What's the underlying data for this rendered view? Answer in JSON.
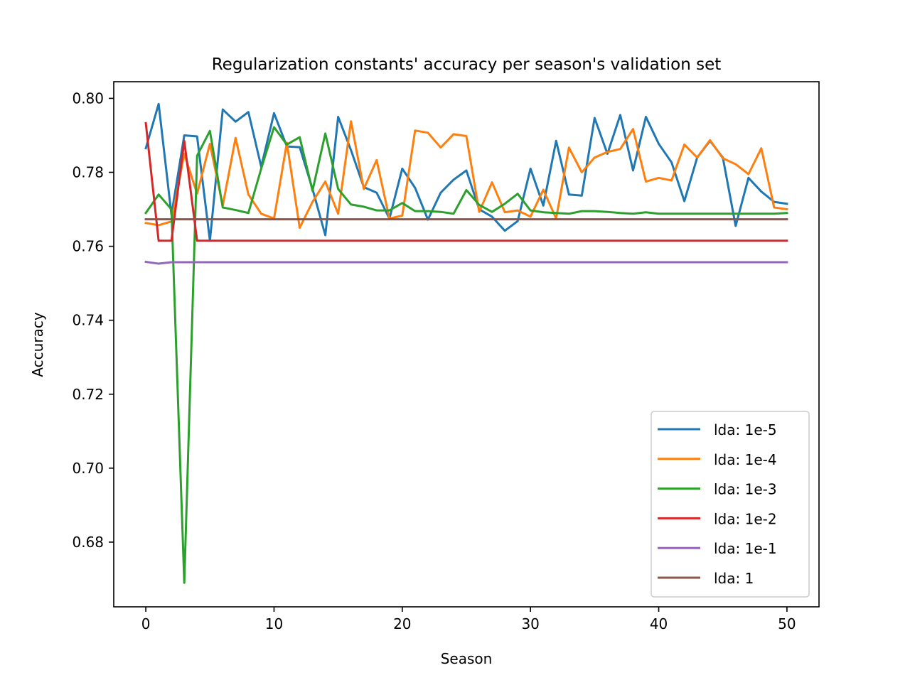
{
  "chart_data": {
    "type": "line",
    "title": "Regularization constants' accuracy per season's validation set",
    "xlabel": "Season",
    "ylabel": "Accuracy",
    "xlim": [
      -2.5,
      52.5
    ],
    "ylim": [
      0.6625,
      0.8045
    ],
    "xticks": [
      0,
      10,
      20,
      30,
      40,
      50
    ],
    "yticks": [
      0.68,
      0.7,
      0.72,
      0.74,
      0.76,
      0.78,
      0.8
    ],
    "ytick_labels": [
      "0.68",
      "0.70",
      "0.72",
      "0.74",
      "0.76",
      "0.78",
      "0.80"
    ],
    "grid": false,
    "legend_position": "lower-right",
    "x": [
      0,
      1,
      2,
      3,
      4,
      5,
      6,
      7,
      8,
      9,
      10,
      11,
      12,
      13,
      14,
      15,
      16,
      17,
      18,
      19,
      20,
      21,
      22,
      23,
      24,
      25,
      26,
      27,
      28,
      29,
      30,
      31,
      32,
      33,
      34,
      35,
      36,
      37,
      38,
      39,
      40,
      41,
      42,
      43,
      44,
      45,
      46,
      47,
      48,
      49,
      50
    ],
    "series": [
      {
        "name": "lda: 1e-5",
        "color": "#1f77b4",
        "values": [
          0.7865,
          0.7985,
          0.7685,
          0.79,
          0.7897,
          0.7615,
          0.797,
          0.7937,
          0.7963,
          0.7815,
          0.796,
          0.787,
          0.7868,
          0.7755,
          0.763,
          0.795,
          0.786,
          0.776,
          0.7745,
          0.7675,
          0.781,
          0.7758,
          0.7672,
          0.7745,
          0.778,
          0.7805,
          0.77,
          0.768,
          0.7642,
          0.7668,
          0.781,
          0.771,
          0.7885,
          0.774,
          0.7737,
          0.7947,
          0.785,
          0.7955,
          0.7805,
          0.795,
          0.7877,
          0.7827,
          0.7722,
          0.784,
          0.7885,
          0.784,
          0.7655,
          0.7785,
          0.7748,
          0.772,
          0.7715
        ]
      },
      {
        "name": "lda: 1e-4",
        "color": "#ff7f0e",
        "values": [
          0.7663,
          0.7657,
          0.7667,
          0.785,
          0.7742,
          0.7877,
          0.771,
          0.7893,
          0.774,
          0.7688,
          0.7675,
          0.788,
          0.765,
          0.772,
          0.7775,
          0.7688,
          0.7938,
          0.7755,
          0.7833,
          0.7675,
          0.7683,
          0.7913,
          0.7907,
          0.7867,
          0.7903,
          0.7898,
          0.7693,
          0.7773,
          0.7692,
          0.7697,
          0.768,
          0.7753,
          0.7675,
          0.7867,
          0.78,
          0.784,
          0.7855,
          0.7863,
          0.7917,
          0.7775,
          0.7785,
          0.7778,
          0.7875,
          0.784,
          0.7887,
          0.7838,
          0.7822,
          0.7795,
          0.7865,
          0.7705,
          0.77
        ]
      },
      {
        "name": "lda: 1e-3",
        "color": "#2ca02c",
        "values": [
          0.769,
          0.774,
          0.77,
          0.669,
          0.7845,
          0.7912,
          0.7705,
          0.7698,
          0.769,
          0.781,
          0.7922,
          0.7875,
          0.7895,
          0.775,
          0.7905,
          0.7755,
          0.7713,
          0.7707,
          0.7697,
          0.7697,
          0.7717,
          0.7695,
          0.7695,
          0.7693,
          0.7688,
          0.7752,
          0.7712,
          0.7693,
          0.7715,
          0.7742,
          0.7697,
          0.7692,
          0.769,
          0.7688,
          0.7695,
          0.7695,
          0.7693,
          0.769,
          0.7688,
          0.7692,
          0.7688,
          0.7688,
          0.7688,
          0.7688,
          0.7688,
          0.7688,
          0.7688,
          0.7688,
          0.7688,
          0.7688,
          0.769
        ]
      },
      {
        "name": "lda: 1e-2",
        "color": "#d62728",
        "values": [
          0.7933,
          0.7615,
          0.7615,
          0.7885,
          0.7615,
          0.7615,
          0.7615,
          0.7615,
          0.7615,
          0.7615,
          0.7615,
          0.7615,
          0.7615,
          0.7615,
          0.7615,
          0.7615,
          0.7615,
          0.7615,
          0.7615,
          0.7615,
          0.7615,
          0.7615,
          0.7615,
          0.7615,
          0.7615,
          0.7615,
          0.7615,
          0.7615,
          0.7615,
          0.7615,
          0.7615,
          0.7615,
          0.7615,
          0.7615,
          0.7615,
          0.7615,
          0.7615,
          0.7615,
          0.7615,
          0.7615,
          0.7615,
          0.7615,
          0.7615,
          0.7615,
          0.7615,
          0.7615,
          0.7615,
          0.7615,
          0.7615,
          0.7615,
          0.7615
        ]
      },
      {
        "name": "lda: 1e-1",
        "color": "#9467bd",
        "values": [
          0.7558,
          0.7553,
          0.7557,
          0.7557,
          0.7557,
          0.7557,
          0.7557,
          0.7557,
          0.7557,
          0.7557,
          0.7557,
          0.7557,
          0.7557,
          0.7557,
          0.7557,
          0.7557,
          0.7557,
          0.7557,
          0.7557,
          0.7557,
          0.7557,
          0.7557,
          0.7557,
          0.7557,
          0.7557,
          0.7557,
          0.7557,
          0.7557,
          0.7557,
          0.7557,
          0.7557,
          0.7557,
          0.7557,
          0.7557,
          0.7557,
          0.7557,
          0.7557,
          0.7557,
          0.7557,
          0.7557,
          0.7557,
          0.7557,
          0.7557,
          0.7557,
          0.7557,
          0.7557,
          0.7557,
          0.7557,
          0.7557,
          0.7557,
          0.7557
        ]
      },
      {
        "name": "lda: 1",
        "color": "#8c564b",
        "values": [
          0.7673,
          0.7673,
          0.7673,
          0.7673,
          0.7673,
          0.7673,
          0.7673,
          0.7673,
          0.7673,
          0.7673,
          0.7673,
          0.7673,
          0.7673,
          0.7673,
          0.7673,
          0.7673,
          0.7673,
          0.7673,
          0.7673,
          0.7673,
          0.7673,
          0.7673,
          0.7673,
          0.7673,
          0.7673,
          0.7673,
          0.7673,
          0.7673,
          0.7673,
          0.7673,
          0.7673,
          0.7673,
          0.7673,
          0.7673,
          0.7673,
          0.7673,
          0.7673,
          0.7673,
          0.7673,
          0.7673,
          0.7673,
          0.7673,
          0.7673,
          0.7673,
          0.7673,
          0.7673,
          0.7673,
          0.7673,
          0.7673,
          0.7673,
          0.7673
        ]
      }
    ]
  }
}
